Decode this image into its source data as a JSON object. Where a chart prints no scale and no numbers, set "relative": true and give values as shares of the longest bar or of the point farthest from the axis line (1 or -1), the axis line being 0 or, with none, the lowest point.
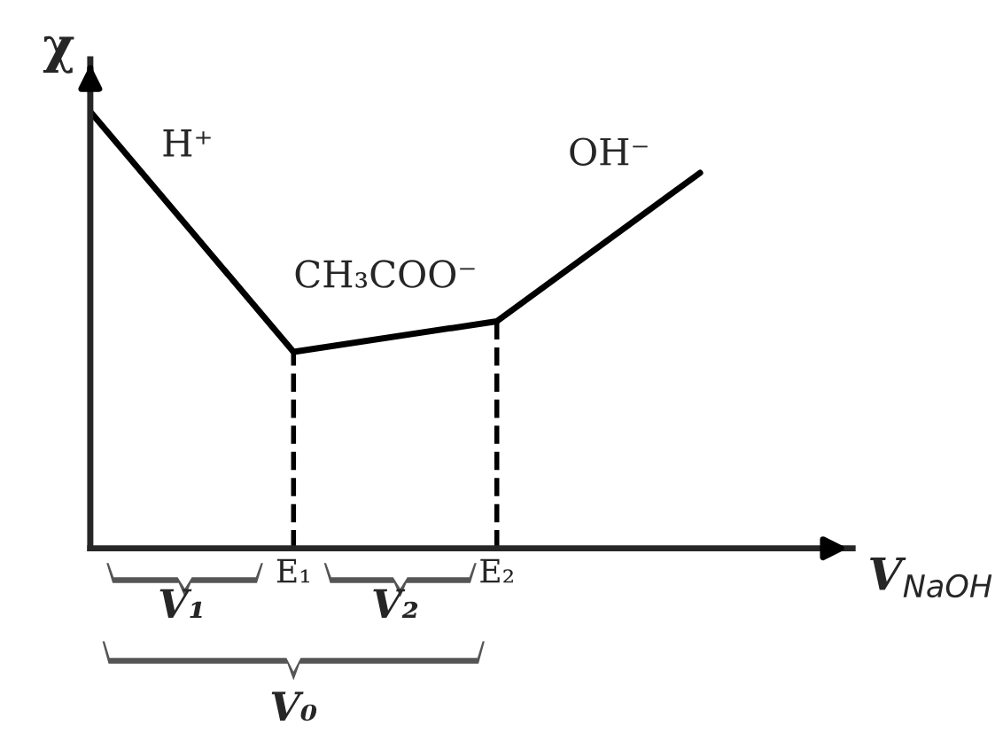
{
  "chart_data": {
    "type": "line",
    "relative": true,
    "xlabel": "V$_{NaOH}$",
    "ylabel": "χ",
    "categories": [
      null,
      "E₁",
      "E₂",
      null
    ],
    "series": [
      {
        "color": "#000000",
        "values": [
          1,
          0.45,
          0.52,
          0.86
        ]
      }
    ],
    "ref_lines": [
      {
        "axis": "x",
        "value": "E₁",
        "line_style": "dashed",
        "color": "#000000"
      },
      {
        "axis": "x",
        "value": "E₂",
        "line_style": "dashed",
        "color": "#000000"
      }
    ],
    "annotations": [
      "H⁺",
      "CH₃COO⁻",
      "OH⁻",
      "V₁",
      "V₂",
      "V₀"
    ],
    "grid": false,
    "marker": "none",
    "line_style": "solid"
  }
}
